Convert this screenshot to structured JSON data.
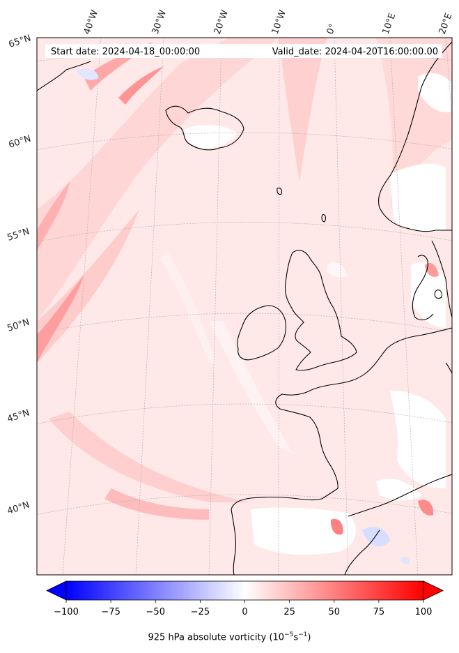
{
  "header": {
    "start_date": "Start date: 2024-04-18_00:00:00",
    "valid_date": "Valid_date: 2024-04-20T16:00:00.00"
  },
  "longitude_labels": [
    "40°W",
    "30°W",
    "20°W",
    "10°W",
    "0°",
    "10°E",
    "20°E"
  ],
  "latitude_labels": [
    "65°N",
    "60°N",
    "55°N",
    "50°N",
    "45°N",
    "40°N"
  ],
  "colorbar": {
    "label_text": "925 hPa absolute vorticity (10",
    "label_exp1": "−5",
    "label_mid": "s",
    "label_exp2": "−1",
    "label_end": ")",
    "min": -100,
    "max": 100,
    "ticks": [
      "−100",
      "−75",
      "−50",
      "−25",
      "0",
      "25",
      "50",
      "75",
      "100"
    ],
    "tick_values": [
      -100,
      -75,
      -50,
      -25,
      0,
      25,
      50,
      75,
      100
    ],
    "extend": "both",
    "colormap": "bwr",
    "color_low": "#0000ff",
    "color_mid": "#ffffff",
    "color_high": "#ff0000"
  },
  "colors": {
    "background_field": "#ffe6e6",
    "coastline": "#000000",
    "gridline": "#b0b0b0"
  }
}
